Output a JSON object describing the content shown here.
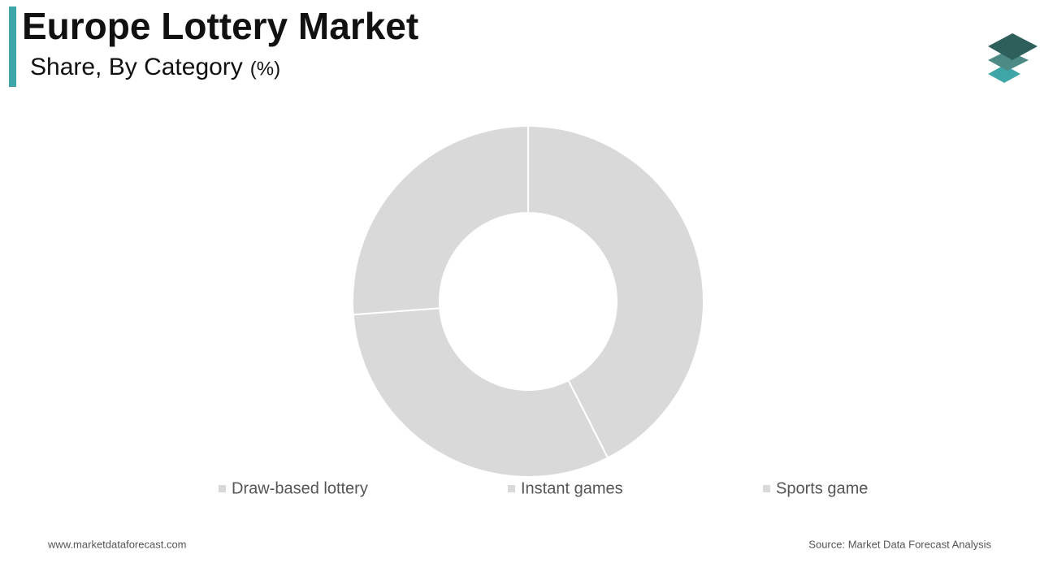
{
  "chart_data": {
    "type": "donut",
    "title": "Europe Lottery Market",
    "subtitle": "Share, By Category",
    "unit": "(%)",
    "categories": [
      "Draw-based lottery",
      "Instant games",
      "Sports game"
    ],
    "values": [
      42.5,
      31.3,
      26.2
    ],
    "color": "#d9d9d9",
    "footer_left": "www.marketdataforecast.com",
    "footer_right": "Source: Market Data Forecast Analysis"
  }
}
